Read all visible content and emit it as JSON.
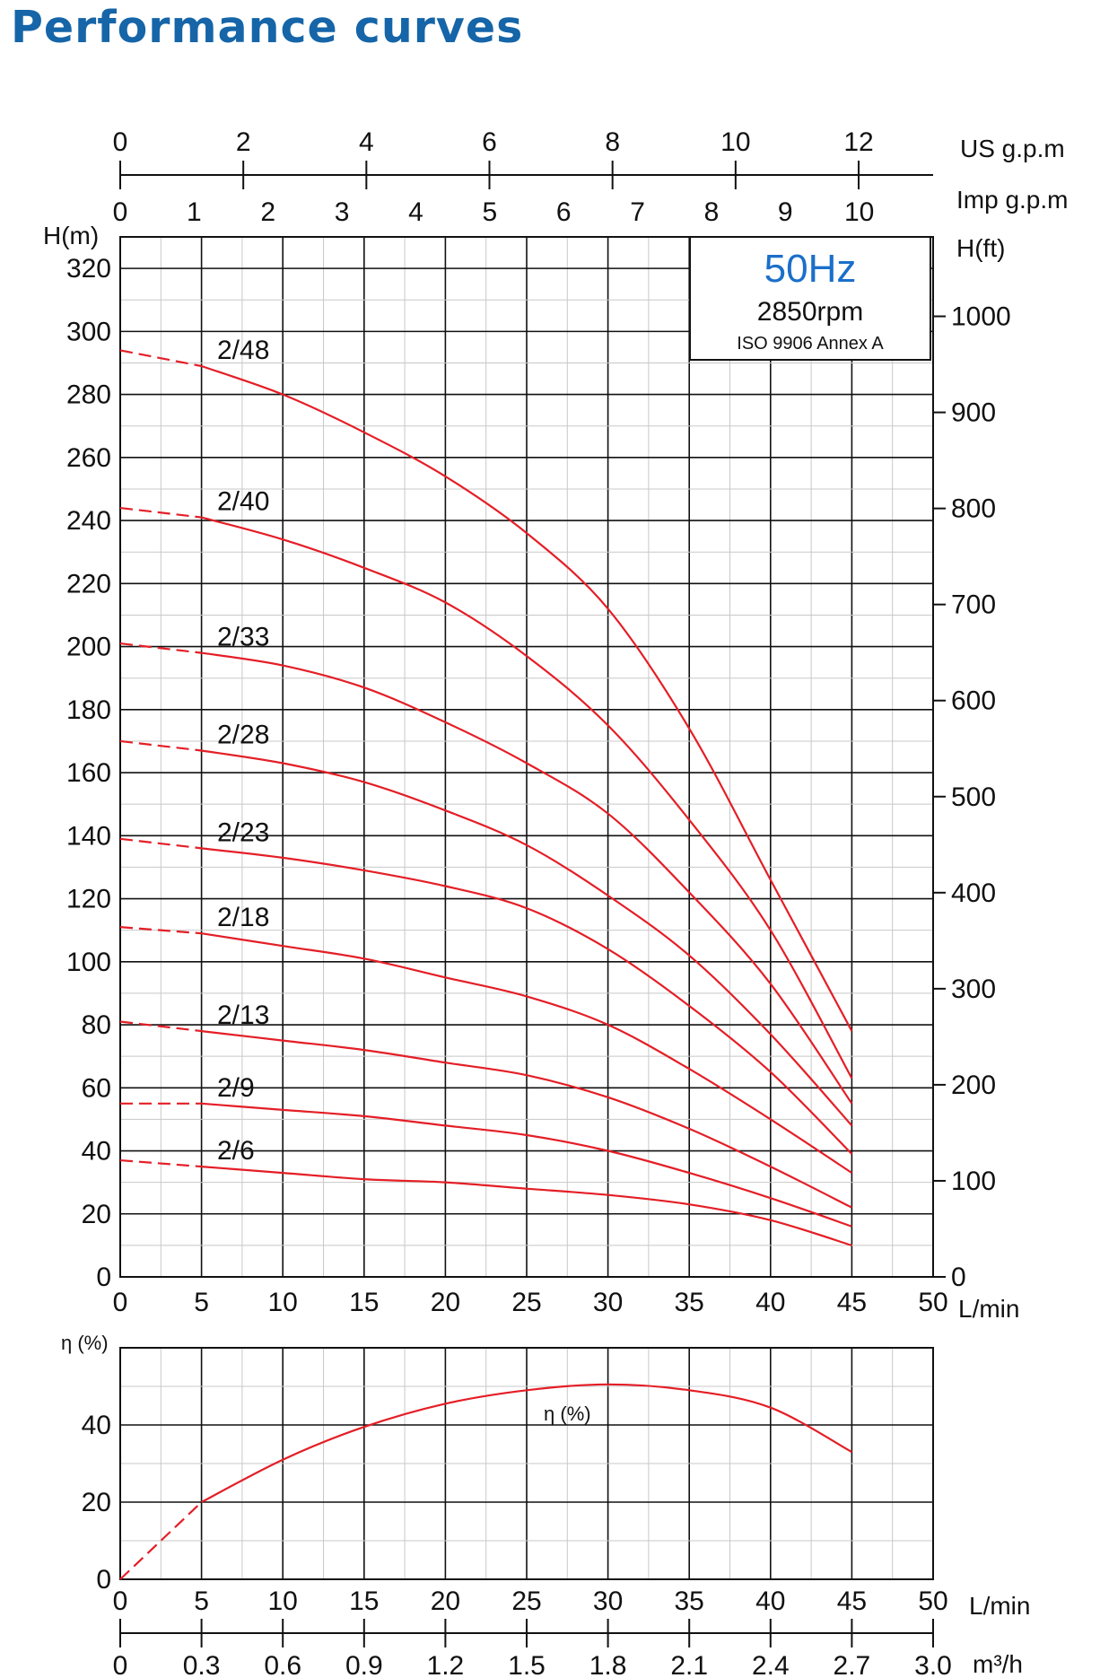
{
  "page": {
    "title": "Performance curves"
  },
  "colors": {
    "title": "#1565a8",
    "curve": "#e41e26",
    "frequency": "#1a6fc9"
  },
  "info_box": {
    "frequency": "50Hz",
    "speed": "2850rpm",
    "standard": "ISO 9906 Annex A"
  },
  "chart_data": [
    {
      "type": "line",
      "xlabel": "L/min",
      "ylabel": "H(m)",
      "y2label": "H(ft)",
      "xlim": [
        0,
        50
      ],
      "ylim": [
        0,
        330
      ],
      "y2lim": [
        0,
        1082.7
      ],
      "xticks": [
        0,
        5,
        10,
        15,
        20,
        25,
        30,
        35,
        40,
        45,
        50
      ],
      "yticks": [
        0,
        20,
        40,
        60,
        80,
        100,
        120,
        140,
        160,
        180,
        200,
        220,
        240,
        260,
        280,
        300,
        320
      ],
      "y2ticks": [
        0,
        100,
        200,
        300,
        400,
        500,
        600,
        700,
        800,
        900,
        1000
      ],
      "grid": true,
      "top_axes": [
        {
          "label": "US g.p.m",
          "max": 13.21,
          "ticks": [
            0,
            2,
            4,
            6,
            8,
            10,
            12
          ]
        },
        {
          "label": "Imp g.p.m",
          "max": 11,
          "ticks": [
            0,
            1,
            2,
            3,
            4,
            5,
            6,
            7,
            8,
            9,
            10
          ]
        }
      ],
      "x": [
        0,
        5,
        10,
        15,
        20,
        25,
        30,
        35,
        40,
        45
      ],
      "series": [
        {
          "name": "2/48",
          "values": [
            294,
            289,
            280,
            268,
            254,
            236,
            212,
            174,
            126,
            78
          ]
        },
        {
          "name": "2/40",
          "values": [
            244,
            241,
            234,
            225,
            214,
            197,
            175,
            145,
            110,
            63
          ]
        },
        {
          "name": "2/33",
          "values": [
            201,
            198,
            194,
            187,
            176,
            163,
            147,
            122,
            93,
            55
          ]
        },
        {
          "name": "2/28",
          "values": [
            170,
            167,
            163,
            157,
            148,
            137,
            121,
            102,
            77,
            48
          ]
        },
        {
          "name": "2/23",
          "values": [
            139,
            136,
            133,
            129,
            124,
            117,
            104,
            86,
            65,
            39
          ]
        },
        {
          "name": "2/18",
          "values": [
            111,
            109,
            105,
            101,
            95,
            89,
            80,
            66,
            50,
            33
          ]
        },
        {
          "name": "2/13",
          "values": [
            81,
            78,
            75,
            72,
            68,
            64,
            57,
            47,
            35,
            22
          ]
        },
        {
          "name": "2/9",
          "values": [
            55,
            55,
            53,
            51,
            48,
            45,
            40,
            33,
            25,
            16
          ]
        },
        {
          "name": "2/6",
          "values": [
            37,
            35,
            33,
            31,
            30,
            28,
            26,
            23,
            18,
            10
          ]
        }
      ]
    },
    {
      "type": "line",
      "xlabel": "L/min",
      "ylabel": "η (%)",
      "xlim": [
        0,
        50
      ],
      "ylim": [
        0,
        60
      ],
      "xticks": [
        0,
        5,
        10,
        15,
        20,
        25,
        30,
        35,
        40,
        45,
        50
      ],
      "yticks": [
        0,
        20,
        40
      ],
      "grid": true,
      "bottom_axis": {
        "label": "m³/h",
        "max": 3.0,
        "ticks": [
          "0",
          "0.3",
          "0.6",
          "0.9",
          "1.2",
          "1.5",
          "1.8",
          "2.1",
          "2.4",
          "2.7",
          "3.0"
        ]
      },
      "x": [
        0,
        5,
        10,
        15,
        20,
        25,
        30,
        35,
        40,
        45
      ],
      "series": [
        {
          "name": "η (%)",
          "values": [
            0,
            20,
            31,
            39.5,
            45.5,
            49,
            50.5,
            49,
            44.5,
            33
          ]
        }
      ]
    }
  ]
}
